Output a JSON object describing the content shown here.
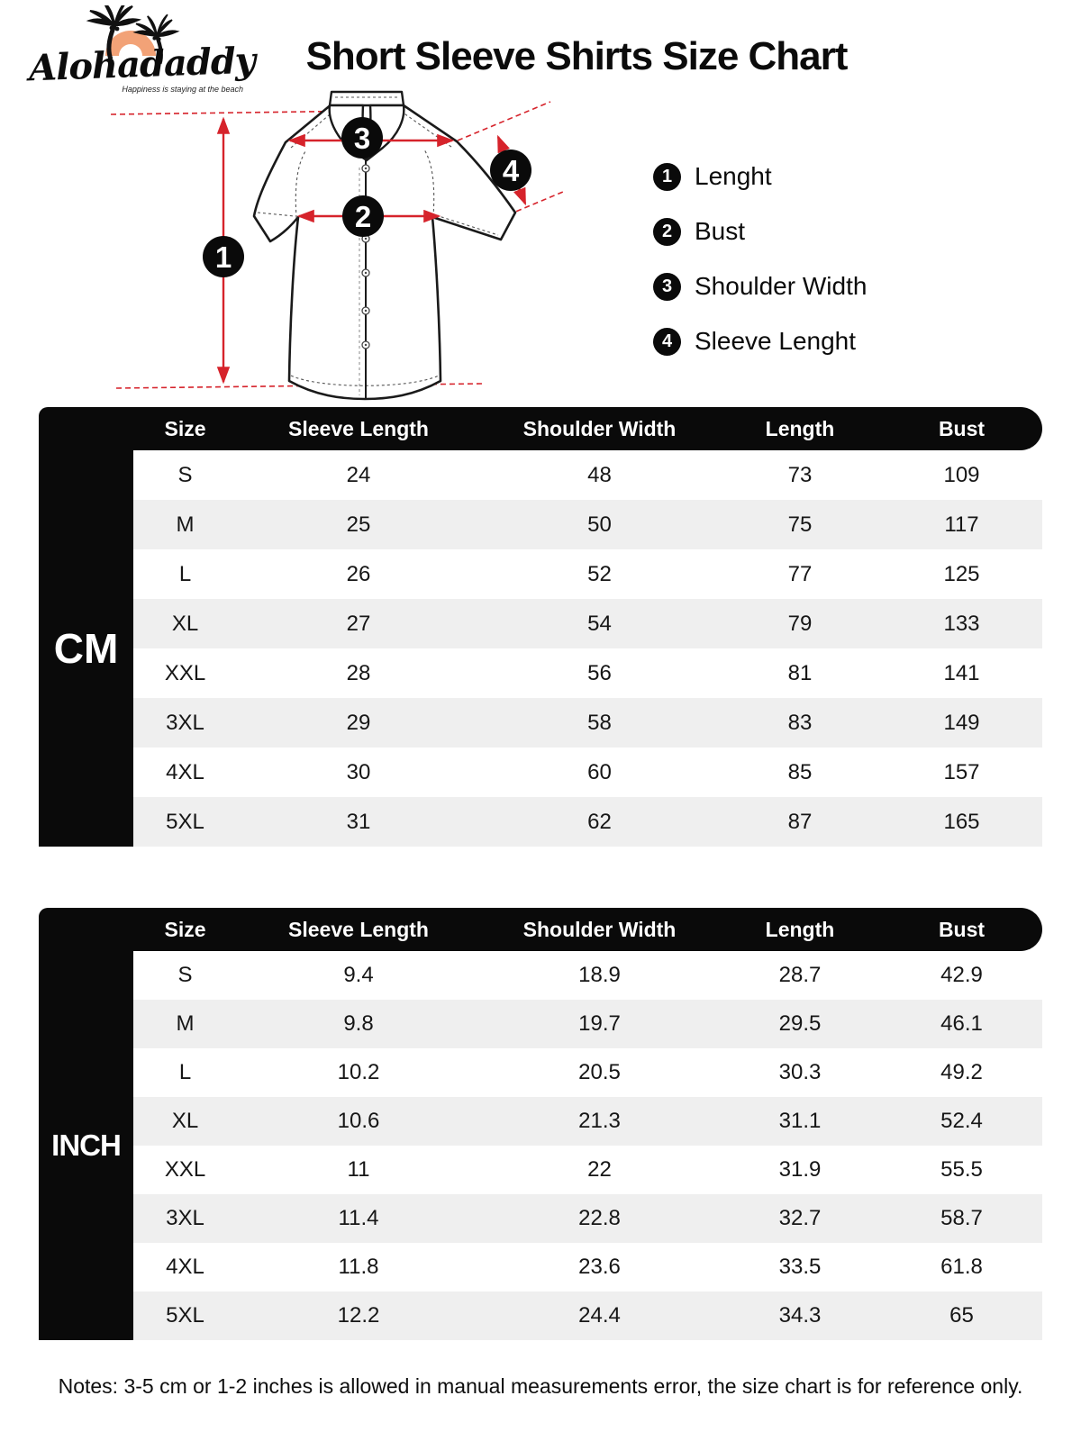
{
  "brand": {
    "name": "Alohadaddy",
    "tagline": "Happiness is staying at the beach"
  },
  "title": "Short Sleeve Shirts Size Chart",
  "legend": {
    "items": [
      {
        "num": "1",
        "label": "Lenght"
      },
      {
        "num": "2",
        "label": "Bust"
      },
      {
        "num": "3",
        "label": "Shoulder Width"
      },
      {
        "num": "4",
        "label": "Sleeve Lenght"
      }
    ]
  },
  "diagram": {
    "markers": [
      "1",
      "2",
      "3",
      "4"
    ]
  },
  "tables": {
    "columns": [
      "Size",
      "Sleeve Length",
      "Shoulder Width",
      "Length",
      "Bust"
    ],
    "cm": {
      "unit_label": "CM",
      "rows": [
        [
          "S",
          "24",
          "48",
          "73",
          "109"
        ],
        [
          "M",
          "25",
          "50",
          "75",
          "117"
        ],
        [
          "L",
          "26",
          "52",
          "77",
          "125"
        ],
        [
          "XL",
          "27",
          "54",
          "79",
          "133"
        ],
        [
          "XXL",
          "28",
          "56",
          "81",
          "141"
        ],
        [
          "3XL",
          "29",
          "58",
          "83",
          "149"
        ],
        [
          "4XL",
          "30",
          "60",
          "85",
          "157"
        ],
        [
          "5XL",
          "31",
          "62",
          "87",
          "165"
        ]
      ]
    },
    "inch": {
      "unit_label": "INCH",
      "rows": [
        [
          "S",
          "9.4",
          "18.9",
          "28.7",
          "42.9"
        ],
        [
          "M",
          "9.8",
          "19.7",
          "29.5",
          "46.1"
        ],
        [
          "L",
          "10.2",
          "20.5",
          "30.3",
          "49.2"
        ],
        [
          "XL",
          "10.6",
          "21.3",
          "31.1",
          "52.4"
        ],
        [
          "XXL",
          "11",
          "22",
          "31.9",
          "55.5"
        ],
        [
          "3XL",
          "11.4",
          "22.8",
          "32.7",
          "58.7"
        ],
        [
          "4XL",
          "11.8",
          "23.6",
          "33.5",
          "61.8"
        ],
        [
          "5XL",
          "12.2",
          "24.4",
          "34.3",
          "65"
        ]
      ]
    }
  },
  "notes": "Notes: 3-5 cm or 1-2 inches is allowed in manual measurements error, the size chart is for reference only.",
  "colors": {
    "accent_red": "#d6232b",
    "logo_orange": "#f2a277",
    "table_black": "#0a0a0a",
    "row_alt": "#efefef"
  },
  "icons": {
    "palm_trees": "palm-trees-icon",
    "shirt": "shirt-diagram",
    "measure_marker": "circled-number-badge"
  }
}
